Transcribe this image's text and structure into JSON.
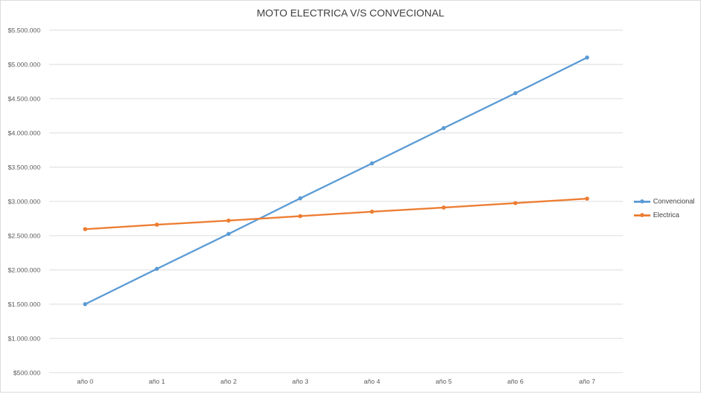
{
  "chart_data": {
    "type": "line",
    "title": "MOTO ELECTRICA V/S CONVECIONAL",
    "xlabel": "",
    "ylabel": "",
    "categories": [
      "año 0",
      "año 1",
      "año 2",
      "año 3",
      "año 4",
      "año 5",
      "año 6",
      "año 7"
    ],
    "y_tick_labels": [
      "$500.000",
      "$1.000.000",
      "$1.500.000",
      "$2.000.000",
      "$2.500.000",
      "$3.000.000",
      "$3.500.000",
      "$4.000.000",
      "$4.500.000",
      "$5.000.000",
      "$5.500.000"
    ],
    "y_ticks": [
      500000,
      1000000,
      1500000,
      2000000,
      2500000,
      3000000,
      3500000,
      4000000,
      4500000,
      5000000,
      5500000
    ],
    "ylim": [
      500000,
      5500000
    ],
    "grid": true,
    "legend_position": "right",
    "series": [
      {
        "name": "Convencional",
        "color": "#5b9bd5",
        "values": [
          1500000,
          2015000,
          2525000,
          3045000,
          3555000,
          4070000,
          4580000,
          5100000
        ]
      },
      {
        "name": "Electrica",
        "color": "#ed7d31",
        "values": [
          2595000,
          2660000,
          2720000,
          2785000,
          2850000,
          2910000,
          2975000,
          3040000
        ]
      }
    ]
  }
}
